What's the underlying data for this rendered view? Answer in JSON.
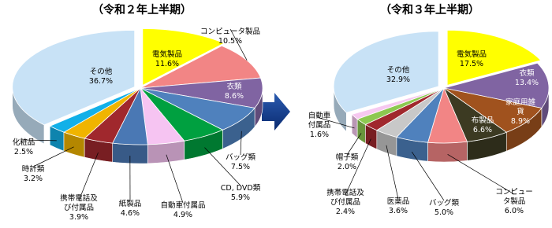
{
  "chart_data": [
    {
      "type": "pie",
      "title": "（令和２年上半期）",
      "categories": [
        "電気製品",
        "コンピュータ製品",
        "衣類",
        "バッグ類",
        "CD, DVD類",
        "自動車付属品",
        "紙製品",
        "携帯電話及\nび付属品",
        "時計類",
        "化粧品",
        "その他"
      ],
      "values": [
        11.6,
        10.5,
        8.6,
        7.5,
        5.9,
        4.9,
        4.6,
        3.9,
        3.2,
        2.5,
        36.7
      ],
      "value_labels": [
        "11.6%",
        "10.5%",
        "8.6%",
        "7.5%",
        "5.9%",
        "4.9%",
        "4.6%",
        "3.9%",
        "3.2%",
        "2.5%",
        "36.7%"
      ],
      "colors": [
        "#ffff00",
        "#f28585",
        "#8064a2",
        "#4f81bd",
        "#00a040",
        "#f6c4f2",
        "#4a78b4",
        "#a0282d",
        "#f0b400",
        "#12b0e8",
        "#c8e2f6"
      ]
    },
    {
      "type": "pie",
      "title": "（令和３年上半期）",
      "categories": [
        "電気製品",
        "衣類",
        "家庭用雑貨",
        "布製品",
        "コンピュータ製品",
        "バッグ類",
        "医薬品",
        "携帯電話及\nび付属品",
        "帽子類",
        "自動車\n付属品",
        "その他"
      ],
      "values": [
        17.5,
        13.4,
        8.9,
        6.6,
        6.0,
        5.0,
        3.6,
        2.4,
        2.0,
        1.6,
        32.9
      ],
      "value_labels": [
        "17.5%",
        "13.4%",
        "8.9%",
        "6.6%",
        "6.0%",
        "5.0%",
        "3.6%",
        "2.4%",
        "2.0%",
        "1.6%",
        "32.9%"
      ],
      "colors": [
        "#ffff00",
        "#8064a2",
        "#a0521e",
        "#3c3a22",
        "#f28585",
        "#4f81bd",
        "#c8c8c8",
        "#a0282d",
        "#8cc850",
        "#f6c8f0",
        "#c8e2f6"
      ]
    }
  ]
}
